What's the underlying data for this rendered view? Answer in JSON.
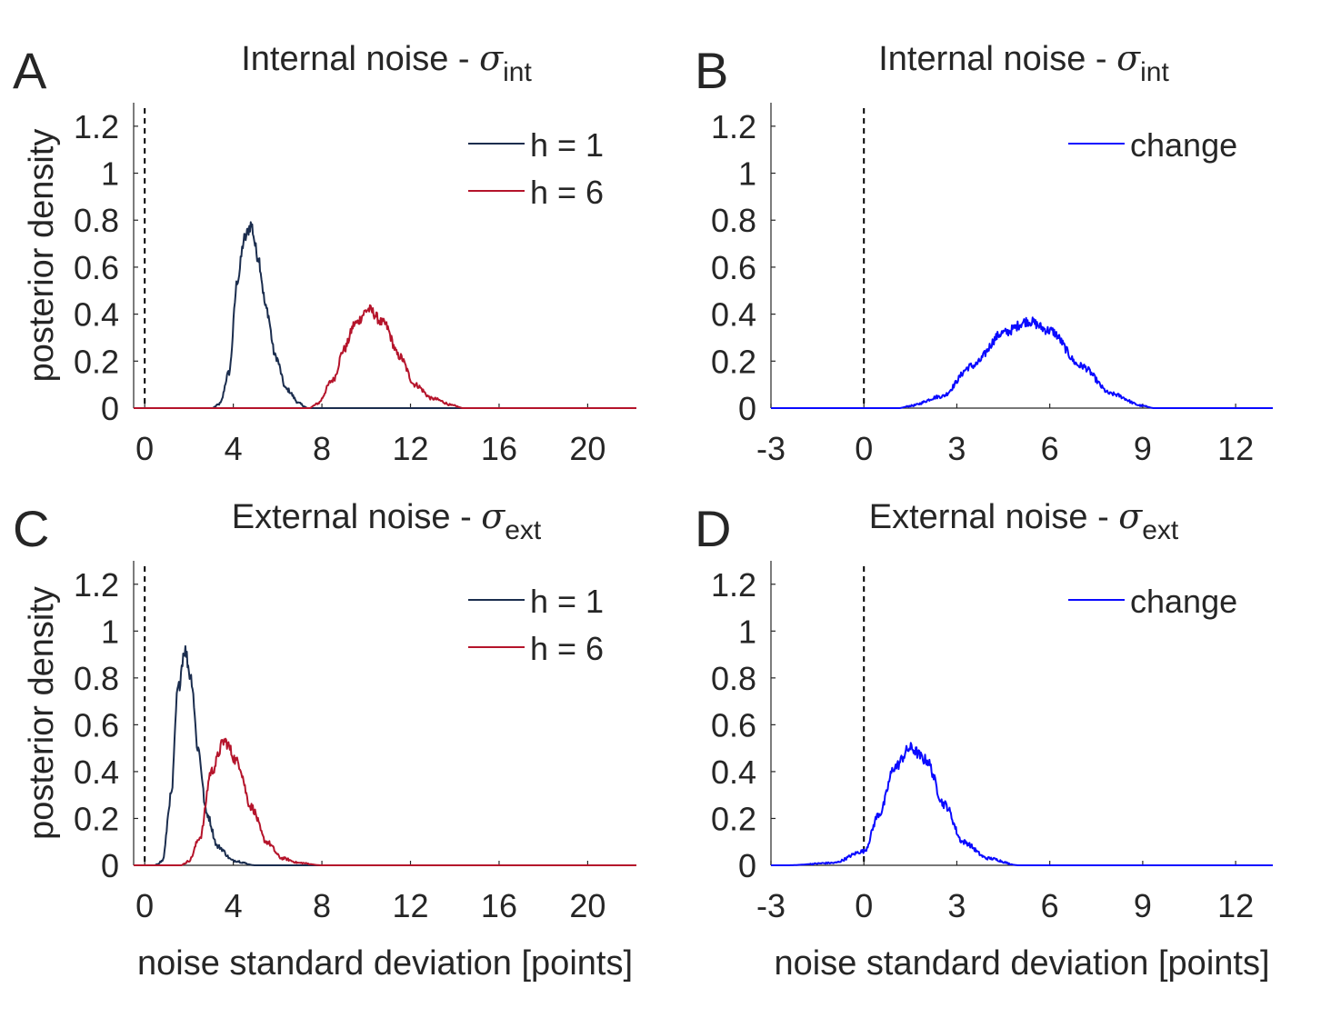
{
  "chart_data": [
    {
      "panel_letter": "A",
      "type": "line",
      "title": "Internal noise - ",
      "title_symbol": "σ",
      "title_subscript": "int",
      "xlabel": "",
      "ylabel": "posterior density",
      "xlim": [
        -0.5,
        22.2
      ],
      "ylim": [
        0,
        1.3
      ],
      "xticks": [
        0,
        4,
        8,
        12,
        16,
        20
      ],
      "yticks": [
        0,
        0.2,
        0.4,
        0.6,
        0.8,
        1,
        1.2
      ],
      "legend_position": "top-right",
      "reference_line_x": 0,
      "series": [
        {
          "name": "h = 1",
          "color": "#1b2d4e",
          "peak_x": 4.8,
          "peak_y": 0.8,
          "x": [
            3.4,
            3.8,
            4.2,
            4.5,
            4.8,
            5.1,
            5.5,
            5.9,
            6.4,
            7.0
          ],
          "y": [
            0.02,
            0.15,
            0.55,
            0.72,
            0.78,
            0.65,
            0.42,
            0.22,
            0.08,
            0.02
          ]
        },
        {
          "name": "h = 6",
          "color": "#b5142b",
          "peak_x": 10.1,
          "peak_y": 0.42,
          "x": [
            7.8,
            8.5,
            9.0,
            9.5,
            10.1,
            10.8,
            11.5,
            12.2,
            13.0,
            14.0
          ],
          "y": [
            0.02,
            0.12,
            0.25,
            0.36,
            0.42,
            0.36,
            0.22,
            0.1,
            0.04,
            0.01
          ]
        }
      ]
    },
    {
      "panel_letter": "B",
      "type": "line",
      "title": "Internal noise - ",
      "title_symbol": "σ",
      "title_subscript": "int",
      "xlabel": "",
      "ylabel": "",
      "xlim": [
        -3,
        13.2
      ],
      "ylim": [
        0,
        1.3
      ],
      "xticks": [
        -3,
        0,
        3,
        6,
        9,
        12
      ],
      "yticks": [
        0,
        0.2,
        0.4,
        0.6,
        0.8,
        1,
        1.2
      ],
      "legend_position": "top-right",
      "reference_line_x": 0,
      "series": [
        {
          "name": "change",
          "color": "#0a0aff",
          "peak_x": 5.3,
          "peak_y": 0.37,
          "x": [
            1.5,
            2.5,
            3.5,
            4.5,
            5.3,
            6.0,
            7.0,
            8.0,
            9.0
          ],
          "y": [
            0.01,
            0.05,
            0.18,
            0.32,
            0.37,
            0.33,
            0.18,
            0.06,
            0.01
          ]
        }
      ]
    },
    {
      "panel_letter": "C",
      "type": "line",
      "title": "External noise - ",
      "title_symbol": "σ",
      "title_subscript": "ext",
      "xlabel": "noise standard deviation [points]",
      "ylabel": "posterior density",
      "xlim": [
        -0.5,
        22.2
      ],
      "ylim": [
        0,
        1.3
      ],
      "xticks": [
        0,
        4,
        8,
        12,
        16,
        20
      ],
      "yticks": [
        0,
        0.2,
        0.4,
        0.6,
        0.8,
        1,
        1.2
      ],
      "legend_position": "top-right",
      "reference_line_x": 0,
      "series": [
        {
          "name": "h = 1",
          "color": "#1b2d4e",
          "peak_x": 1.8,
          "peak_y": 0.92,
          "x": [
            0.8,
            1.2,
            1.5,
            1.8,
            2.1,
            2.4,
            2.8,
            3.3,
            4.0,
            5.0
          ],
          "y": [
            0.02,
            0.3,
            0.75,
            0.92,
            0.8,
            0.5,
            0.22,
            0.08,
            0.02,
            0.0
          ]
        },
        {
          "name": "h = 6",
          "color": "#b5142b",
          "peak_x": 3.6,
          "peak_y": 0.53,
          "x": [
            2.0,
            2.5,
            3.0,
            3.6,
            4.2,
            4.8,
            5.5,
            6.2,
            7.0,
            8.0
          ],
          "y": [
            0.02,
            0.12,
            0.4,
            0.53,
            0.44,
            0.25,
            0.1,
            0.03,
            0.01,
            0.0
          ]
        }
      ]
    },
    {
      "panel_letter": "D",
      "type": "line",
      "title": "External noise - ",
      "title_symbol": "σ",
      "title_subscript": "ext",
      "xlabel": "noise standard deviation [points]",
      "ylabel": "",
      "xlim": [
        -3,
        13.2
      ],
      "ylim": [
        0,
        1.3
      ],
      "xticks": [
        -3,
        0,
        3,
        6,
        9,
        12
      ],
      "yticks": [
        0,
        0.2,
        0.4,
        0.6,
        0.8,
        1,
        1.2
      ],
      "legend_position": "top-right",
      "reference_line_x": 0,
      "series": [
        {
          "name": "change",
          "color": "#0a0aff",
          "peak_x": 1.5,
          "peak_y": 0.5,
          "x": [
            -2.5,
            -1.0,
            0.0,
            0.5,
            1.0,
            1.5,
            2.0,
            2.6,
            3.2,
            4.0,
            5.0
          ],
          "y": [
            0.0,
            0.01,
            0.06,
            0.22,
            0.42,
            0.5,
            0.45,
            0.26,
            0.1,
            0.03,
            0.0
          ]
        }
      ]
    }
  ]
}
